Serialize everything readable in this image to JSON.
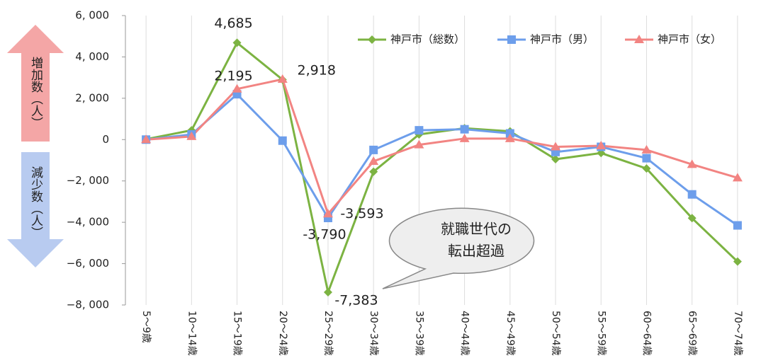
{
  "chart_data": {
    "type": "line",
    "categories": [
      "5～9歳",
      "10～14歳",
      "15～19歳",
      "20～24歳",
      "25～29歳",
      "30～34歳",
      "35～39歳",
      "40～44歳",
      "45～49歳",
      "50～54歳",
      "55～59歳",
      "60～64歳",
      "65～69歳",
      "70～74歳"
    ],
    "ylim": [
      -8000,
      6000
    ],
    "yticks": [
      {
        "value": -8000,
        "label": "−8, 000"
      },
      {
        "value": -6000,
        "label": "−6, 000"
      },
      {
        "value": -4000,
        "label": "−4, 000"
      },
      {
        "value": -2000,
        "label": "−2, 000"
      },
      0,
      {
        "value": 2000,
        "label": "2, 000"
      },
      {
        "value": 4000,
        "label": "4, 000"
      },
      {
        "value": 6000,
        "label": "6, 000"
      }
    ],
    "grid": true,
    "legend": "top-right",
    "series": [
      {
        "name": "神戸市（総数）",
        "color": "#7cb342",
        "label_color": "#6aa84f",
        "marker": "diamond",
        "values": [
          20,
          450,
          4685,
          2900,
          -7383,
          -1550,
          250,
          550,
          400,
          -950,
          -650,
          -1400,
          -3800,
          -5900
        ],
        "value_labels": [
          null,
          null,
          "4,685",
          null,
          "-7,383",
          null,
          null,
          null,
          null,
          null,
          null,
          null,
          null,
          null
        ]
      },
      {
        "name": "神戸市（男）",
        "color": "#6d9eeb",
        "label_color": "#4a7cc7",
        "marker": "square",
        "values": [
          0,
          250,
          2195,
          -50,
          -3790,
          -500,
          450,
          500,
          300,
          -600,
          -350,
          -900,
          -2650,
          -4150
        ],
        "value_labels": [
          null,
          null,
          "2,195",
          null,
          "-3,790",
          null,
          null,
          null,
          null,
          null,
          null,
          null,
          null,
          null
        ]
      },
      {
        "name": "神戸市（女）",
        "color": "#f28482",
        "label_color": "#e8170f",
        "marker": "triangle",
        "values": [
          0,
          150,
          2450,
          2918,
          -3593,
          -1050,
          -250,
          50,
          50,
          -350,
          -300,
          -500,
          -1200,
          -1850
        ],
        "value_labels": [
          null,
          null,
          null,
          "2,918",
          "-3,593",
          null,
          null,
          null,
          null,
          null,
          null,
          null,
          null,
          null
        ]
      }
    ],
    "annotations": {
      "increase": "増加数（人）",
      "decrease": "減少数（人）",
      "callout": [
        "就職世代の",
        "転出超過"
      ]
    }
  }
}
